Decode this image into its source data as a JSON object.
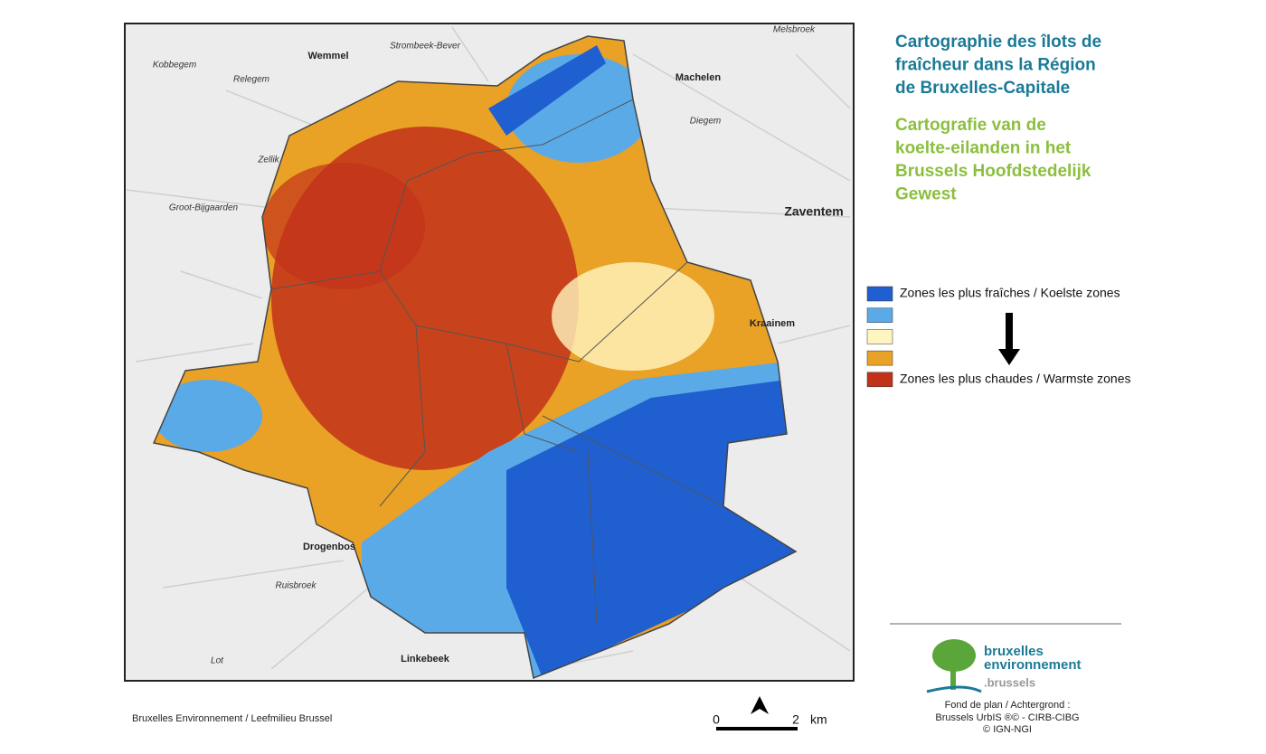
{
  "map": {
    "places": [
      "Melsbroek",
      "Strombeek-Bever",
      "Wemmel",
      "Kobbegem",
      "Relegem",
      "Machelen",
      "Diegem",
      "Zellik",
      "Groot-Bijgaarden",
      "Zaventem",
      "Kraainem",
      "Drogenbos",
      "Ruisbroek",
      "Lot",
      "Linkebeek"
    ],
    "title_fr": [
      "Cartographie des îlots de",
      "fraîcheur dans la Région",
      "de Bruxelles-Capitale"
    ],
    "title_nl": [
      "Cartografie van de",
      "koelte-eilanden in het",
      "Brussels Hoofdstedelijk",
      "Gewest"
    ],
    "legend": [
      {
        "color": "#1f5fd0",
        "label": "Zones les plus fraîches / Koelste zones"
      },
      {
        "color": "#5aaae8"
      },
      {
        "color": "#fff6bf"
      },
      {
        "color": "#e9a126"
      },
      {
        "color": "#c2321a",
        "label": "Zones les plus chaudes / Warmste zones"
      }
    ],
    "source": "Bruxelles Environnement / Leefmilieu Brussel",
    "scale": {
      "start": 0,
      "end": 2,
      "unit": "km"
    },
    "logo": [
      "bruxelles",
      "environnement",
      ".brussels"
    ],
    "credits": [
      "Fond de plan / Achtergrond :",
      "Brussels UrbIS ®© - CIRB-CIBG",
      "© IGN-NGI"
    ]
  }
}
